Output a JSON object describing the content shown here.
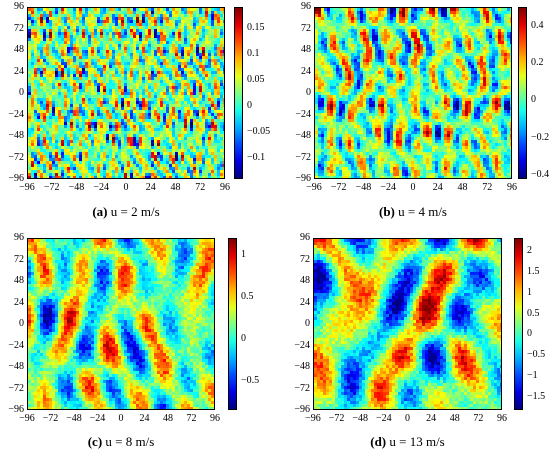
{
  "chart_data": [
    {
      "type": "heatmap",
      "caption_label": "(a)",
      "caption_text": "u = 2 m/s",
      "xlim": [
        -96,
        96
      ],
      "ylim": [
        -96,
        96
      ],
      "xticks": [
        "−96",
        "−72",
        "−48",
        "−24",
        "0",
        "24",
        "48",
        "72",
        "96"
      ],
      "yticks": [
        "96",
        "72",
        "48",
        "24",
        "0",
        "−24",
        "−48",
        "−72",
        "−96"
      ],
      "colorbar": {
        "ticks": [
          "0.15",
          "0.1",
          "0.05",
          "0",
          "−0.05",
          "−0.1"
        ],
        "tick_values": [
          0.15,
          0.1,
          0.05,
          0,
          -0.05,
          -0.1
        ],
        "range": [
          -0.14,
          0.19
        ]
      },
      "pattern": {
        "cell": 3,
        "freq": 0.55,
        "stretch": 2.6,
        "seed": 11
      }
    },
    {
      "type": "heatmap",
      "caption_label": "(b)",
      "caption_text": "u = 4 m/s",
      "xlim": [
        -96,
        96
      ],
      "ylim": [
        -96,
        96
      ],
      "xticks": [
        "−96",
        "−72",
        "−48",
        "−24",
        "0",
        "24",
        "48",
        "72",
        "96"
      ],
      "yticks": [
        "96",
        "72",
        "48",
        "24",
        "0",
        "−24",
        "−48",
        "−72",
        "−96"
      ],
      "colorbar": {
        "ticks": [
          "0.4",
          "0.2",
          "0",
          "−0.2",
          "−0.4"
        ],
        "tick_values": [
          0.4,
          0.2,
          0,
          -0.2,
          -0.4
        ],
        "range": [
          -0.42,
          0.5
        ]
      },
      "pattern": {
        "cell": 3,
        "freq": 0.28,
        "stretch": 2.4,
        "seed": 23
      }
    },
    {
      "type": "heatmap",
      "caption_label": "(c)",
      "caption_text": "u = 8 m/s",
      "xlim": [
        -96,
        96
      ],
      "ylim": [
        -96,
        96
      ],
      "xticks": [
        "−96",
        "−72",
        "−48",
        "−24",
        "0",
        "24",
        "48",
        "72",
        "96"
      ],
      "yticks": [
        "96",
        "72",
        "48",
        "24",
        "0",
        "−24",
        "−48",
        "−72",
        "−96"
      ],
      "colorbar": {
        "ticks": [
          "1",
          "0.5",
          "0",
          "−0.5"
        ],
        "tick_values": [
          1,
          0.5,
          0,
          -0.5
        ],
        "range": [
          -0.85,
          1.2
        ]
      },
      "pattern": {
        "cell": 3,
        "freq": 0.13,
        "stretch": 1.8,
        "seed": 37
      }
    },
    {
      "type": "heatmap",
      "caption_label": "(d)",
      "caption_text": "u = 13 m/s",
      "xlim": [
        -96,
        96
      ],
      "ylim": [
        -96,
        96
      ],
      "xticks": [
        "−96",
        "−72",
        "−48",
        "−24",
        "0",
        "24",
        "48",
        "72",
        "96"
      ],
      "yticks": [
        "96",
        "72",
        "48",
        "24",
        "0",
        "−24",
        "−48",
        "−72",
        "−96"
      ],
      "colorbar": {
        "ticks": [
          "2",
          "1.5",
          "1",
          "0.5",
          "0",
          "−0.5",
          "−1",
          "−1.5"
        ],
        "tick_values": [
          2,
          1.5,
          1,
          0.5,
          0,
          -0.5,
          -1,
          -1.5
        ],
        "range": [
          -1.8,
          2.3
        ]
      },
      "pattern": {
        "cell": 3,
        "freq": 0.1,
        "stretch": 1.7,
        "seed": 53
      }
    }
  ]
}
